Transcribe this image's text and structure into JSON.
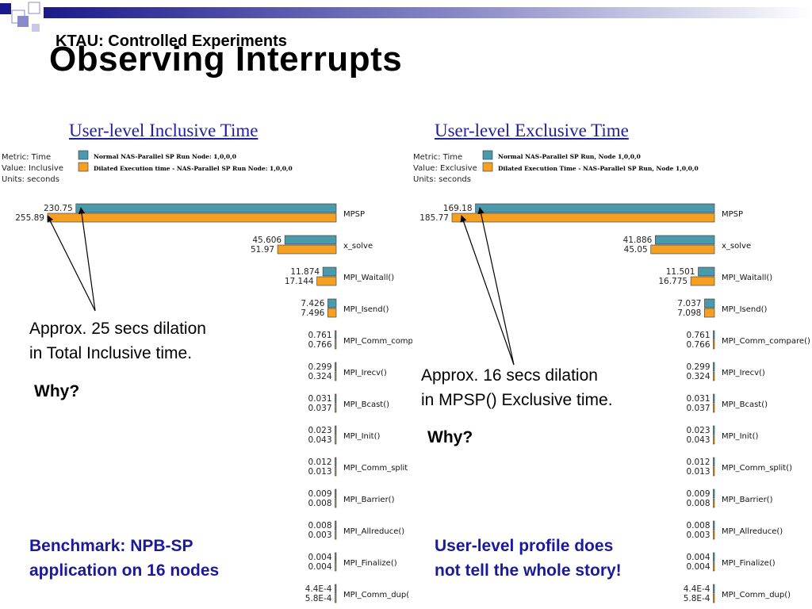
{
  "slide": {
    "subtitle": "KTAU: Controlled Experiments",
    "title": "Observing Interrupts",
    "left_callout": [
      "Approx. 25 secs dilation",
      "in Total Inclusive time."
    ],
    "left_why": "Why?",
    "right_callout": [
      "Approx. 16 secs dilation",
      "in MPSP() Exclusive time."
    ],
    "right_why": "Why?",
    "left_note": [
      "Benchmark: NPB-SP",
      "application on 16 nodes"
    ],
    "right_note": [
      "User-level profile does",
      "not tell the whole story!"
    ]
  },
  "colors": {
    "series_normal": "#4b9aac",
    "series_dilated": "#f5a020",
    "link": "#1f1fa0",
    "note": "#1a1a9a",
    "deco_dark": "#1a1a8c",
    "deco_mid": "#8a8ac8"
  },
  "chart_data": [
    {
      "type": "bar",
      "orientation": "horizontal",
      "title": "User-level Inclusive Time",
      "info": [
        "Metric: Time",
        "Value: Inclusive",
        "Units: seconds"
      ],
      "series": [
        {
          "name": "Normal NAS-Parallel SP Run Node: 1,0,0,0",
          "values": [
            230.75,
            45.606,
            11.874,
            7.426,
            0.761,
            0.299,
            0.031,
            0.023,
            0.012,
            0.009,
            0.008,
            0.004,
            0.00044
          ],
          "labels": [
            "230.75",
            "45.606",
            "11.874",
            "7.426",
            "0.761",
            "0.299",
            "0.031",
            "0.023",
            "0.012",
            "0.009",
            "0.008",
            "0.004",
            "4.4E-4"
          ]
        },
        {
          "name": "Dilated Execution time - NAS-Parallel SP Run Node: 1,0,0,0",
          "values": [
            255.89,
            51.97,
            17.144,
            7.496,
            0.766,
            0.324,
            0.037,
            0.043,
            0.013,
            0.008,
            0.003,
            0.004,
            0.00058
          ],
          "labels": [
            "255.89",
            "51.97",
            "17.144",
            "7.496",
            "0.766",
            "0.324",
            "0.037",
            "0.043",
            "0.013",
            "0.008",
            "0.003",
            "0.004",
            "5.8E-4"
          ]
        }
      ],
      "categories": [
        "MPSP",
        "x_solve",
        "MPI_Waitall()",
        "MPI_Isend()",
        "MPI_Comm_comp",
        "MPI_Irecv()",
        "MPI_Bcast()",
        "MPI_Init()",
        "MPI_Comm_split",
        "MPI_Barrier()",
        "MPI_Allreduce()",
        "MPI_Finalize()",
        "MPI_Comm_dup("
      ],
      "xlim": [
        0,
        255.89
      ],
      "legend_position": "top"
    },
    {
      "type": "bar",
      "orientation": "horizontal",
      "title": "User-level Exclusive Time",
      "info": [
        "Metric: Time",
        "Value: Exclusive",
        "Units: seconds"
      ],
      "series": [
        {
          "name": "Normal NAS-Parallel SP Run, Node 1,0,0,0",
          "values": [
            169.18,
            41.886,
            11.501,
            7.037,
            0.761,
            0.299,
            0.031,
            0.023,
            0.012,
            0.009,
            0.008,
            0.004,
            0.00044
          ],
          "labels": [
            "169.18",
            "41.886",
            "11.501",
            "7.037",
            "0.761",
            "0.299",
            "0.031",
            "0.023",
            "0.012",
            "0.009",
            "0.008",
            "0.004",
            "4.4E-4"
          ]
        },
        {
          "name": "Dilated Execution Time - NAS-Parallel SP Run, Node 1,0,0,0",
          "values": [
            185.77,
            45.05,
            16.775,
            7.098,
            0.766,
            0.324,
            0.037,
            0.043,
            0.013,
            0.008,
            0.003,
            0.004,
            0.00058
          ],
          "labels": [
            "185.77",
            "45.05",
            "16.775",
            "7.098",
            "0.766",
            "0.324",
            "0.037",
            "0.043",
            "0.013",
            "0.008",
            "0.003",
            "0.004",
            "5.8E-4"
          ]
        }
      ],
      "categories": [
        "MPSP",
        "x_solve",
        "MPI_Waitall()",
        "MPI_Isend()",
        "MPI_Comm_compare()",
        "MPI_Irecv()",
        "MPI_Bcast()",
        "MPI_Init()",
        "MPI_Comm_split()",
        "MPI_Barrier()",
        "MPI_Allreduce()",
        "MPI_Finalize()",
        "MPI_Comm_dup()"
      ],
      "xlim": [
        0,
        185.77
      ],
      "legend_position": "top"
    }
  ]
}
